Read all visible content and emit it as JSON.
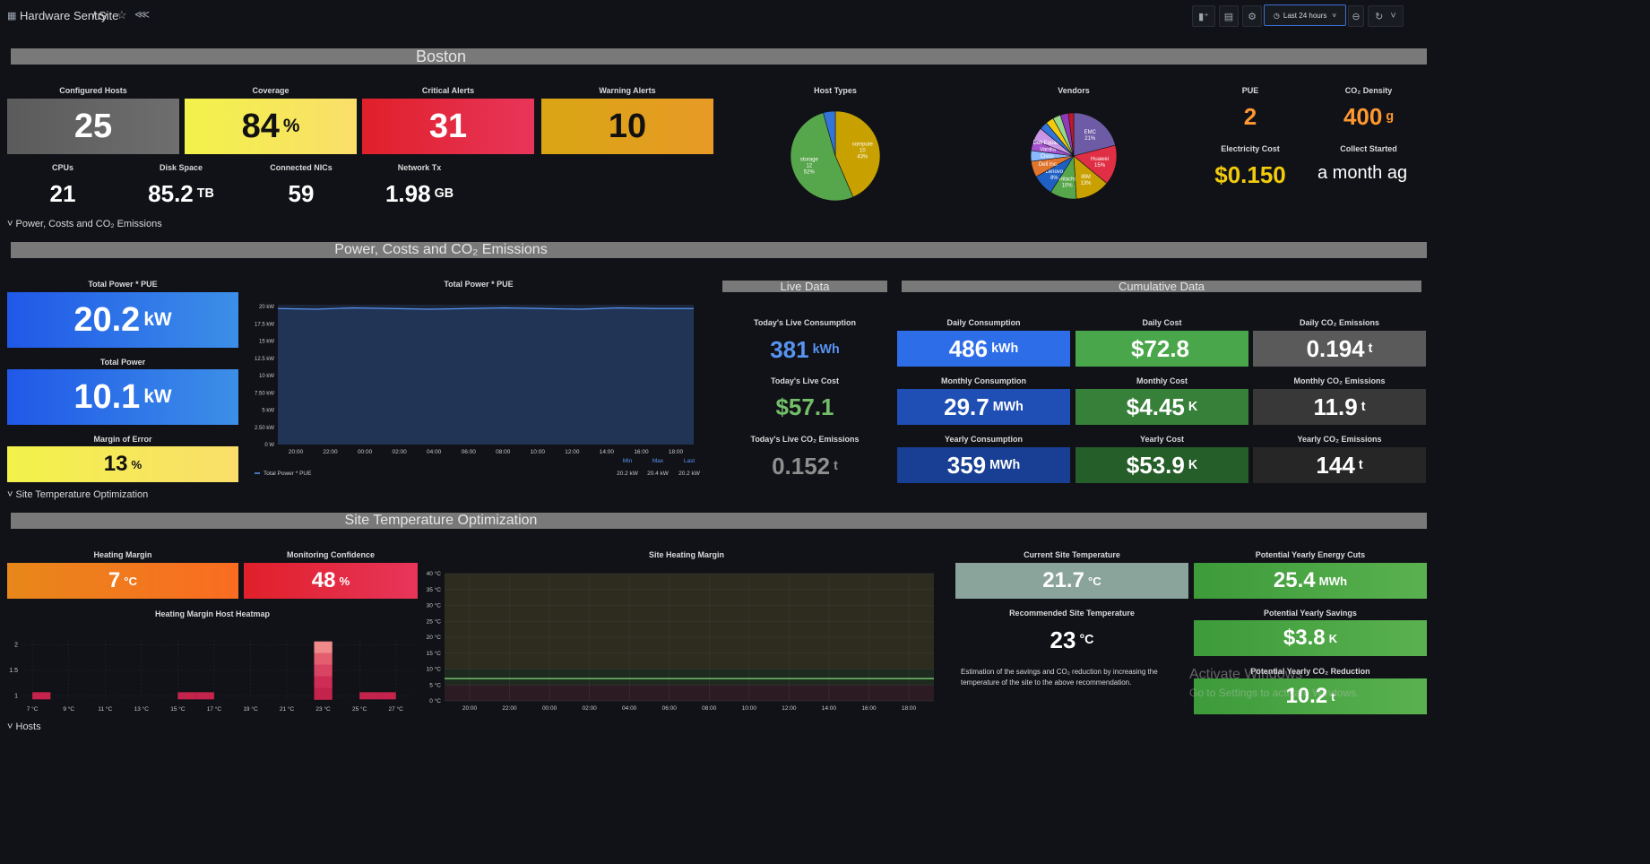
{
  "topbar": {
    "breadcrumb_root": "Hardware Sentry",
    "breadcrumb_sep": "/",
    "breadcrumb_page": "Site",
    "time_range": "Last 24 hours"
  },
  "rows": {
    "boston": "Boston",
    "power": "Power, Costs and CO₂ Emissions",
    "temp": "Site Temperature Optimization",
    "hosts": "Hosts"
  },
  "summary": {
    "configured_hosts": {
      "title": "Configured Hosts",
      "value": "25"
    },
    "coverage": {
      "title": "Coverage",
      "value": "84",
      "unit": "%"
    },
    "critical_alerts": {
      "title": "Critical Alerts",
      "value": "31"
    },
    "warning_alerts": {
      "title": "Warning Alerts",
      "value": "10"
    },
    "cpus": {
      "title": "CPUs",
      "value": "21"
    },
    "disk_space": {
      "title": "Disk Space",
      "value": "85.2",
      "unit": "TB"
    },
    "connected_nics": {
      "title": "Connected NICs",
      "value": "59"
    },
    "network_tx": {
      "title": "Network Tx",
      "value": "1.98",
      "unit": "GB"
    },
    "host_types": {
      "title": "Host Types",
      "slices": [
        {
          "label": "compute",
          "count": "10",
          "pct": "43%",
          "color": "#c8a000"
        },
        {
          "label": "storage",
          "count": "12",
          "pct": "52%",
          "color": "#56a64b"
        },
        {
          "label": "",
          "count": "",
          "pct": "",
          "color": "#3274d9"
        }
      ]
    },
    "vendors": {
      "title": "Vendors",
      "slices": [
        {
          "label": "EMC",
          "pct": "21%",
          "color": "#6e5ba6"
        },
        {
          "label": "Huawei",
          "pct": "15%",
          "color": "#e02f44"
        },
        {
          "label": "IBM",
          "pct": "13%",
          "color": "#c8a000"
        },
        {
          "label": "Hitachi",
          "pct": "10%",
          "color": "#56a64b"
        },
        {
          "label": "Lenovo",
          "pct": "8%",
          "color": "#1f60c4"
        },
        {
          "label": "Dell Inc.",
          "pct": "",
          "color": "#e0752d"
        },
        {
          "label": "Cisco",
          "pct": "",
          "color": "#8ab8ff"
        },
        {
          "label": "Vanilla",
          "pct": "",
          "color": "#a352cc"
        },
        {
          "label": "Dell Equallogic",
          "pct": "",
          "color": "#ca95e5"
        },
        {
          "label": "",
          "pct": "",
          "color": "#3274d9"
        },
        {
          "label": "",
          "pct": "",
          "color": "#f2cc0c"
        },
        {
          "label": "",
          "pct": "",
          "color": "#96d98d"
        },
        {
          "label": "",
          "pct": "",
          "color": "#8f3bb8"
        },
        {
          "label": "",
          "pct": "",
          "color": "#c4162a"
        }
      ]
    },
    "pue": {
      "title": "PUE",
      "value": "2"
    },
    "co2_density": {
      "title": "CO₂ Density",
      "value": "400",
      "unit": "g"
    },
    "electricity_cost": {
      "title": "Electricity Cost",
      "value": "$0.150"
    },
    "collect_started": {
      "title": "Collect Started",
      "value": "a month ag"
    },
    "collapse_label": "Power, Costs and CO₂ Emissions"
  },
  "power": {
    "total_power_pue": {
      "title": "Total Power * PUE",
      "value": "20.2",
      "unit": "kW"
    },
    "total_power": {
      "title": "Total Power",
      "value": "10.1",
      "unit": "kW"
    },
    "margin_of_error": {
      "title": "Margin of Error",
      "value": "13",
      "unit": "%"
    },
    "collapse_label": "Site Temperature Optimization",
    "live_header": "Live Data",
    "cumulative_header": "Cumulative Data",
    "live": [
      {
        "title": "Today's Live Consumption",
        "value": "381",
        "unit": "kWh",
        "color": "#5794f2"
      },
      {
        "title": "Today's Live Cost",
        "value": "$57.1",
        "unit": "",
        "color": "#73bf69"
      },
      {
        "title": "Today's Live CO₂ Emissions",
        "value": "0.152",
        "unit": "t",
        "color": "#8e8e8e"
      }
    ],
    "cumulative": [
      {
        "title": "Daily Consumption",
        "value": "486",
        "unit": "kWh",
        "color": "#2d6ee8"
      },
      {
        "title": "Daily Cost",
        "value": "$72.8",
        "unit": "",
        "color": "#4aa64a"
      },
      {
        "title": "Daily CO₂ Emissions",
        "value": "0.194",
        "unit": "t",
        "color": "#5a5a5a"
      },
      {
        "title": "Monthly Consumption",
        "value": "29.7",
        "unit": "MWh",
        "color": "#1f4fb5"
      },
      {
        "title": "Monthly Cost",
        "value": "$4.45",
        "unit": "K",
        "color": "#37803a"
      },
      {
        "title": "Monthly CO₂ Emissions",
        "value": "11.9",
        "unit": "t",
        "color": "#383838"
      },
      {
        "title": "Yearly Consumption",
        "value": "359",
        "unit": "MWh",
        "color": "#183f93"
      },
      {
        "title": "Yearly Cost",
        "value": "$53.9",
        "unit": "K",
        "color": "#255e28"
      },
      {
        "title": "Yearly CO₂ Emissions",
        "value": "144",
        "unit": "t",
        "color": "#262626"
      }
    ]
  },
  "temp": {
    "heating_margin": {
      "title": "Heating Margin",
      "value": "7",
      "unit": "°C"
    },
    "monitoring_confidence": {
      "title": "Monitoring Confidence",
      "value": "48",
      "unit": "%"
    },
    "current_temp": {
      "title": "Current Site Temperature",
      "value": "21.7",
      "unit": "°C"
    },
    "recommended_temp": {
      "title": "Recommended Site Temperature",
      "value": "23",
      "unit": "°C"
    },
    "note": "Estimation of the savings and CO₂ reduction by increasing the temperature of the site to the above recommendation.",
    "energy_cuts": {
      "title": "Potential Yearly Energy Cuts",
      "value": "25.4",
      "unit": "MWh"
    },
    "savings": {
      "title": "Potential Yearly Savings",
      "value": "$3.8",
      "unit": "K"
    },
    "co2_reduction": {
      "title": "Potential Yearly CO₂ Reduction",
      "value": "10.2",
      "unit": "t"
    },
    "watermark_1": "Activate Windows",
    "watermark_2": "Go to Settings to activate Windows."
  },
  "chart_data": [
    {
      "type": "line",
      "title": "Total Power * PUE",
      "x": [
        "20:00",
        "22:00",
        "00:00",
        "02:00",
        "04:00",
        "06:00",
        "08:00",
        "10:00",
        "12:00",
        "14:00",
        "16:00",
        "18:00"
      ],
      "series": [
        {
          "name": "Total Power * PUE",
          "values": [
            20.2,
            20.1,
            20.3,
            20.2,
            20.1,
            20.2,
            20.3,
            20.2,
            20.1,
            20.3,
            20.2,
            20.2
          ]
        }
      ],
      "y_ticks": [
        "0 W",
        "2.50 kW",
        "5 kW",
        "7.50 kW",
        "10 kW",
        "12.5 kW",
        "15 kW",
        "17.5 kW",
        "20 kW"
      ],
      "ylim": [
        0,
        20.5
      ],
      "legend_headers": [
        "Min",
        "Max",
        "Last"
      ],
      "legend_values": [
        "20.2 kW",
        "20.4 kW",
        "20.2 kW"
      ]
    },
    {
      "type": "line",
      "title": "Site Heating Margin",
      "x": [
        "20:00",
        "22:00",
        "00:00",
        "02:00",
        "04:00",
        "06:00",
        "08:00",
        "10:00",
        "12:00",
        "14:00",
        "16:00",
        "18:00"
      ],
      "series": [
        {
          "name": "",
          "values": [
            7,
            7,
            7,
            7,
            7,
            7,
            7,
            7,
            7,
            7,
            7,
            7
          ]
        }
      ],
      "y_ticks": [
        "0 °C",
        "5 °C",
        "10 °C",
        "15 °C",
        "20 °C",
        "25 °C",
        "30 °C",
        "35 °C",
        "40 °C"
      ],
      "ylim": [
        0,
        40
      ]
    },
    {
      "type": "heatmap",
      "title": "Heating Margin Host Heatmap",
      "x": [
        "7 °C",
        "9 °C",
        "11 °C",
        "13 °C",
        "15 °C",
        "17 °C",
        "19 °C",
        "21 °C",
        "23 °C",
        "25 °C",
        "27 °C"
      ],
      "y_ticks": [
        "1",
        "1.5",
        "2"
      ],
      "cells": [
        {
          "x": 7.5,
          "count": 1
        },
        {
          "x": 15.5,
          "count": 1
        },
        {
          "x": 16.5,
          "count": 1
        },
        {
          "x": 23,
          "count": 2
        },
        {
          "x": 25.5,
          "count": 1
        },
        {
          "x": 26.5,
          "count": 1
        }
      ]
    }
  ]
}
